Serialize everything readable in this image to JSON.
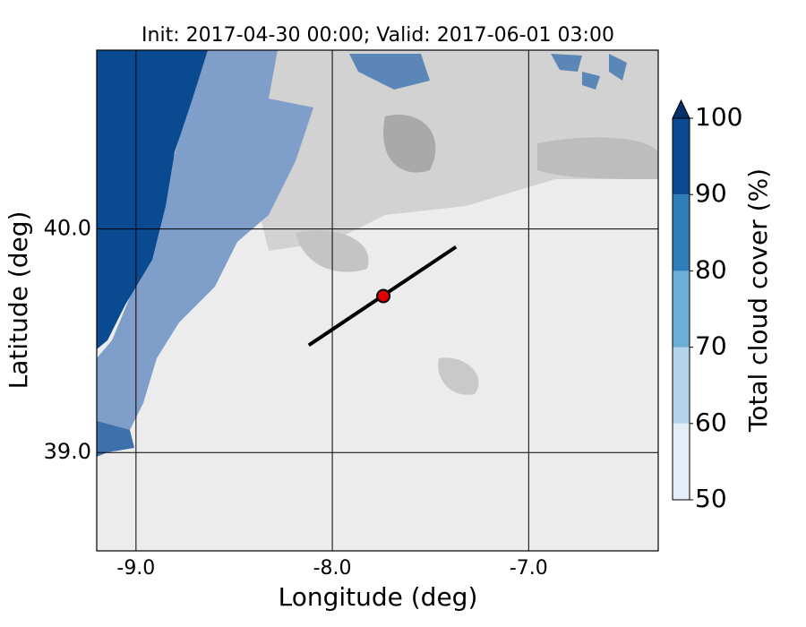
{
  "chart_data": {
    "type": "map",
    "title": "Init: 2017-04-30 00:00; Valid: 2017-06-01 03:00",
    "xlabel": "Longitude (deg)",
    "ylabel": "Latitude (deg)",
    "xlim": [
      -9.2,
      -6.34
    ],
    "ylim": [
      38.56,
      40.8
    ],
    "xticks": [
      {
        "value": -9,
        "label": "-9.0"
      },
      {
        "value": -8,
        "label": "-8.0"
      },
      {
        "value": -7,
        "label": "-7.0"
      }
    ],
    "yticks": [
      {
        "value": 39,
        "label": "39.0"
      },
      {
        "value": 40,
        "label": "40.0"
      }
    ],
    "grid": true,
    "point": {
      "lon": -7.74,
      "lat": 39.7,
      "color": "#e00000"
    },
    "transect": {
      "lon": [
        -8.12,
        -7.37
      ],
      "lat": [
        39.48,
        39.92
      ]
    },
    "colorbar": {
      "label": "Total cloud cover (%)",
      "ticks": [
        50,
        60,
        70,
        80,
        90,
        100
      ],
      "colors": [
        "#e3eef8",
        "#b5d3e9",
        "#6baed6",
        "#2f7ebc",
        "#0a4a90"
      ],
      "extend_color": "#08306b"
    }
  }
}
